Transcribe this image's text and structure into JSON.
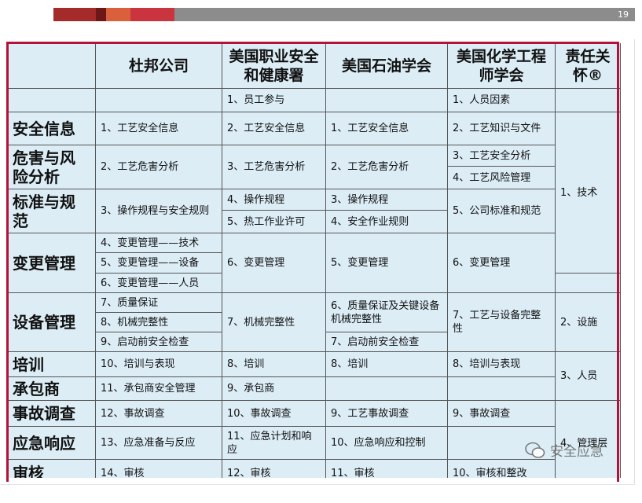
{
  "header": {
    "page_number": "19"
  },
  "table": {
    "columns": [
      "杜邦公司",
      "美国职业安全和健康署",
      "美国石油学会",
      "美国化学工程师学会",
      "责任关怀®"
    ],
    "cells": [
      "安全信息",
      "危害与风险分析",
      "标准与规范",
      "变更管理",
      "设备管理",
      "培训",
      "承包商",
      "事故调查",
      "应急响应",
      "审核",
      "1、员工参与",
      "1、人员因素",
      "1、工艺安全信息",
      "2、工艺安全信息",
      "1、工艺安全信息",
      "2、工艺知识与文件",
      "2、工艺危害分析",
      "3、工艺危害分析",
      "2、工艺危害分析",
      "3、工艺安全分析",
      "4、工艺风险管理",
      "3、操作规程与安全规则",
      "4、操作规程",
      "5、热工作业许可",
      "3、操作规程",
      "4、安全作业规则",
      "5、公司标准和规范",
      "4、变更管理——技术",
      "5、变更管理——设备",
      "6、变更管理——人员",
      "6、变更管理",
      "5、变更管理",
      "6、变更管理",
      "7、质量保证",
      "8、机械完整性",
      "9、启动前安全检查",
      "7、机械完整性",
      "6、质量保证及关键设备机械完整性",
      "7、启动前安全检查",
      "7、工艺与设备完整性",
      "10、培训与表现",
      "8、培训",
      "8、培训",
      "8、培训与表现",
      "11、承包商安全管理",
      "9、承包商",
      "12、事故调查",
      "10、事故调查",
      "9、工艺事故调查",
      "9、事故调查",
      "13、应急准备与反应",
      "11、应急计划和响应",
      "10、应急响应和控制",
      "14、审核",
      "12、审核",
      "11、审核",
      "10、审核和整改",
      "1、技术",
      "2、设施",
      "3、人员",
      "4、管理层"
    ]
  },
  "watermark": "安全应急"
}
